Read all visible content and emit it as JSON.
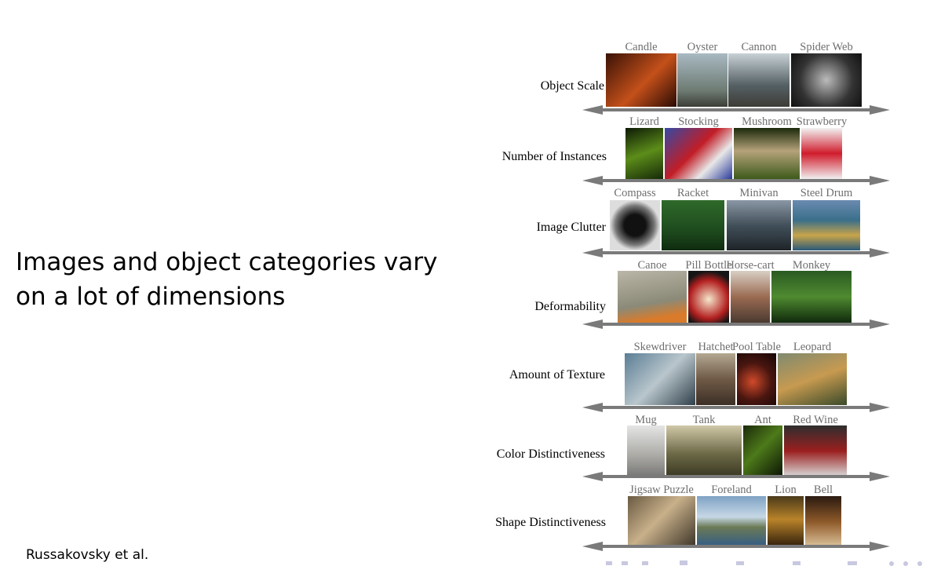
{
  "slide": {
    "text": "Images and object categories vary on a lot of dimensions",
    "citation": "Russakovsky et al."
  },
  "figure": {
    "rows": [
      {
        "label": "Object Scale",
        "categories": [
          "Candle",
          "Oyster",
          "Cannon",
          "Spider Web"
        ]
      },
      {
        "label": "Number of Instances",
        "categories": [
          "Lizard",
          "Stocking",
          "Mushroom",
          "Strawberry"
        ]
      },
      {
        "label": "Image Clutter",
        "categories": [
          "Compass",
          "Racket",
          "Minivan",
          "Steel Drum"
        ]
      },
      {
        "label": "Deformability",
        "categories": [
          "Canoe",
          "Pill Bottle",
          "Horse-cart",
          "Monkey"
        ]
      },
      {
        "label": "Amount of Texture",
        "categories": [
          "Skewdriver",
          "Hatchet",
          "Pool Table",
          "Leopard"
        ]
      },
      {
        "label": "Color Distinctiveness",
        "categories": [
          "Mug",
          "Tank",
          "Ant",
          "Red Wine"
        ]
      },
      {
        "label": "Shape Distinctiveness",
        "categories": [
          "Jigsaw Puzzle",
          "Foreland",
          "Lion",
          "Bell"
        ]
      }
    ]
  },
  "colors": {
    "arrow": "#7a7a7a",
    "category_label": "#6e6e6e",
    "nav": "#c8c8e0"
  }
}
